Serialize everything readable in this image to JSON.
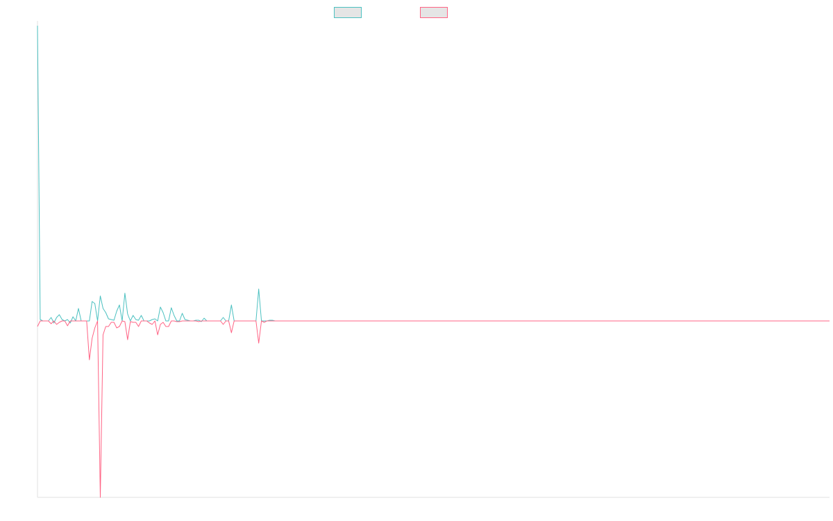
{
  "chart_data": {
    "type": "line",
    "title": "",
    "xlabel": "",
    "ylabel": "",
    "ylim": [
      -254,
      425
    ],
    "grid": false,
    "legend": "top-center",
    "series": [
      {
        "color": "#4bc0c0",
        "values": [
          425,
          2,
          0,
          0,
          0,
          5,
          -3,
          5,
          9,
          2,
          0,
          2,
          -3,
          6,
          0,
          18,
          0,
          0,
          0,
          0,
          28,
          25,
          0,
          36,
          18,
          12,
          3,
          2,
          1,
          14,
          23,
          0,
          40,
          10,
          0,
          8,
          2,
          1,
          8,
          0,
          0,
          0,
          2,
          3,
          0,
          20,
          12,
          0,
          0,
          19,
          8,
          0,
          0,
          11,
          2,
          1,
          0,
          0,
          1,
          1,
          -1,
          4,
          0,
          0,
          0,
          0,
          0,
          0,
          5,
          0,
          0,
          23,
          0,
          0,
          0,
          0,
          0,
          0,
          0,
          0,
          0,
          46,
          0,
          0,
          0,
          1,
          1,
          0,
          0,
          0,
          0,
          0,
          0,
          0,
          0,
          0,
          0,
          0,
          0,
          0,
          0,
          0,
          0,
          0,
          0,
          0,
          0,
          0,
          0,
          0,
          0,
          0,
          0,
          0,
          0,
          0,
          0,
          0,
          0,
          0,
          0,
          0,
          0,
          0,
          0,
          0,
          0,
          0,
          0,
          0,
          0,
          0,
          0,
          0,
          0,
          0,
          0,
          0,
          0,
          0,
          0,
          0,
          0,
          0,
          0,
          0,
          0,
          0,
          0,
          0,
          0,
          0,
          0,
          0,
          0,
          0,
          0,
          0,
          0,
          0,
          0,
          0,
          0,
          0,
          0,
          0,
          0,
          0,
          0,
          0,
          0,
          0,
          0,
          0,
          0,
          0,
          0,
          0,
          0,
          0,
          0,
          0,
          0,
          0,
          0,
          0,
          0,
          0,
          0,
          0,
          0,
          0,
          0,
          0,
          0,
          0,
          0,
          0,
          0,
          0,
          0,
          0,
          0,
          0,
          0,
          0,
          0,
          0,
          0,
          0,
          0,
          0,
          0,
          0,
          0,
          0,
          0,
          0,
          0,
          0,
          0,
          0,
          0,
          0,
          0,
          0,
          0,
          0,
          0,
          0,
          0,
          0,
          0,
          0,
          0,
          0,
          0,
          0,
          0,
          0,
          0,
          0,
          0,
          0,
          0,
          0,
          0,
          0,
          0,
          0,
          0,
          0,
          0,
          0,
          0,
          0,
          0,
          0,
          0,
          0,
          0,
          0,
          0,
          0,
          0,
          0,
          0,
          0,
          0,
          0,
          0,
          0,
          0,
          0,
          0,
          0,
          0,
          0,
          0,
          0,
          0,
          0,
          0,
          0,
          0,
          0,
          0,
          0,
          0,
          0,
          0
        ]
      },
      {
        "color": "#ff6384",
        "values": [
          -8,
          0,
          0,
          0,
          0,
          -4,
          0,
          -5,
          -2,
          0,
          0,
          -7,
          0,
          0,
          0,
          0,
          0,
          0,
          0,
          -56,
          -25,
          -10,
          0,
          -254,
          -20,
          -8,
          -8,
          -2,
          -2,
          -10,
          -8,
          0,
          -1,
          -27,
          -1,
          -2,
          -2,
          -8,
          0,
          0,
          0,
          -3,
          -5,
          0,
          -20,
          -5,
          -2,
          -8,
          -8,
          0,
          0,
          -1,
          -1,
          0,
          0,
          0,
          0,
          0,
          0,
          -1,
          0,
          0,
          0,
          0,
          0,
          0,
          0,
          0,
          -5,
          0,
          0,
          -17,
          0,
          0,
          0,
          0,
          0,
          0,
          0,
          0,
          0,
          -32,
          0,
          -2,
          0,
          0,
          0,
          0,
          0,
          0,
          0,
          0,
          0,
          0,
          0,
          0,
          0,
          0,
          0,
          0,
          0,
          0,
          0,
          0,
          0,
          0,
          0,
          0,
          0,
          0,
          0,
          0,
          0,
          0,
          0,
          0,
          0,
          0,
          0,
          0,
          0,
          0,
          0,
          0,
          0,
          0,
          0,
          0,
          0,
          0,
          0,
          0,
          0,
          0,
          0,
          0,
          0,
          0,
          0,
          0,
          0,
          0,
          0,
          0,
          0,
          0,
          0,
          0,
          0,
          0,
          0,
          0,
          0,
          0,
          0,
          0,
          0,
          0,
          0,
          0,
          0,
          0,
          0,
          0,
          0,
          0,
          0,
          0,
          0,
          0,
          0,
          0,
          0,
          0,
          0,
          0,
          0,
          0,
          0,
          0,
          0,
          0,
          0,
          0,
          0,
          0,
          0,
          0,
          0,
          0,
          0,
          0,
          0,
          0,
          0,
          0,
          0,
          0,
          0,
          0,
          0,
          0,
          0,
          0,
          0,
          0,
          0,
          0,
          0,
          0,
          0,
          0,
          0,
          0,
          0,
          0,
          0,
          0,
          0,
          0,
          0,
          0,
          0,
          0,
          0,
          0,
          0,
          0,
          0,
          0,
          0,
          0,
          0,
          0,
          0,
          0,
          0,
          0,
          0,
          0,
          0,
          0,
          0,
          0,
          0,
          0,
          0,
          0,
          0,
          0,
          0,
          0,
          0,
          0,
          0,
          0,
          0,
          0,
          0,
          0,
          0,
          0,
          0,
          0,
          0,
          0,
          0,
          0,
          0,
          0,
          0,
          0,
          0,
          0,
          0,
          0,
          0,
          0,
          0,
          0,
          0,
          0,
          0,
          0,
          0,
          0,
          0,
          0,
          0,
          0,
          0
        ]
      }
    ],
    "legend_fill": "#e5e5e5"
  }
}
